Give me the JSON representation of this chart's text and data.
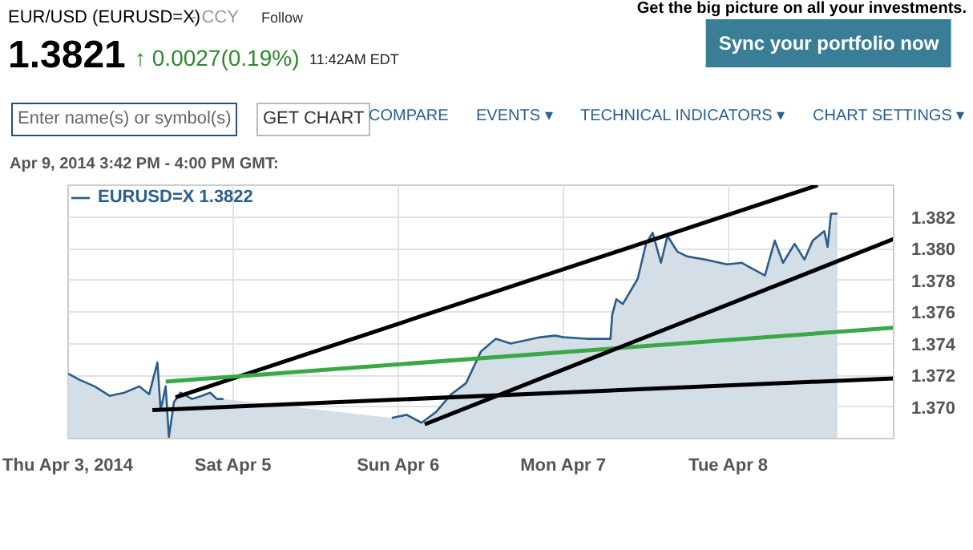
{
  "chart_data": {
    "type": "area",
    "title": "EUR/USD (EURUSD=X)",
    "annotations": [
      "- CCY",
      "Follow",
      "1.3821",
      "↑ 0.0027(0.19%)",
      "11:42AM EDT",
      "Get the big picture on all your investments.",
      "Sync your portfolio now",
      "Enter name(s) or symbol(s)",
      "GET CHART",
      "COMPARE",
      "EVENTS ▾",
      "TECHNICAL INDICATORS ▾",
      "CHART SETTINGS ▾",
      "Apr 9, 2014 3:42 PM - 4:00 PM GMT:"
    ],
    "xlim": [
      "2014-04-03T23:59",
      "2014-04-09"
    ],
    "ylim": [
      1.368,
      1.384
    ],
    "xticks": [
      {
        "value": "2014-04-03T23:59",
        "label": "Thu Apr 3, 2014"
      },
      {
        "value": "2014-04-05",
        "label": "Sat Apr 5"
      },
      {
        "value": "2014-04-06",
        "label": "Sun Apr 6"
      },
      {
        "value": "2014-04-07",
        "label": "Mon Apr 7"
      },
      {
        "value": "2014-04-08",
        "label": "Tue Apr 8"
      }
    ],
    "yticks": [
      {
        "value": 1.37,
        "label": "1.370"
      },
      {
        "value": 1.372,
        "label": "1.372"
      },
      {
        "value": 1.374,
        "label": "1.374"
      },
      {
        "value": 1.376,
        "label": "1.376"
      },
      {
        "value": 1.378,
        "label": "1.378"
      },
      {
        "value": 1.38,
        "label": "1.380"
      },
      {
        "value": 1.382,
        "label": "1.382"
      }
    ],
    "grid": true,
    "legend": "top left",
    "series": [
      {
        "name": "EURUSD=X 1.3822",
        "color": "#2b5c8a",
        "x": [
          "2014-04-04T00:00",
          "2014-04-04T01:41",
          "2014-04-04T03:50",
          "2014-04-04T06:00",
          "2014-04-04T08:10",
          "2014-04-04T10:19",
          "2014-04-04T11:46",
          "2014-04-04T12:58",
          "2014-04-04T13:26",
          "2014-04-04T14:10",
          "2014-04-04T14:38",
          "2014-04-04T15:22",
          "2014-04-04T16:19",
          "2014-04-04T18:00",
          "2014-04-04T19:26",
          "2014-04-04T20:38",
          "2014-04-04T21:36",
          "2014-04-04T22:34",
          "2014-04-05T12:00",
          "2014-04-05T23:02",
          "2014-04-06T01:12",
          "2014-04-06T03:22",
          "2014-04-06T05:31",
          "2014-04-06T07:41",
          "2014-04-06T09:50",
          "2014-04-06T12:00",
          "2014-04-06T14:10",
          "2014-04-06T16:19",
          "2014-04-06T18:29",
          "2014-04-06T20:38",
          "2014-04-06T22:48",
          "2014-04-07T00:00",
          "2014-04-07T03:22",
          "2014-04-07T06:50",
          "2014-04-07T07:05",
          "2014-04-07T07:41",
          "2014-04-07T08:38",
          "2014-04-07T10:48",
          "2014-04-07T12:00",
          "2014-04-07T12:58",
          "2014-04-07T14:10",
          "2014-04-07T15:07",
          "2014-04-07T16:34",
          "2014-04-07T18:00",
          "2014-04-07T20:38",
          "2014-04-07T23:46",
          "2014-04-08T01:55",
          "2014-04-08T05:17",
          "2014-04-08T06:43",
          "2014-04-08T07:55",
          "2014-04-08T09:36",
          "2014-04-08T11:02",
          "2014-04-08T12:14",
          "2014-04-08T13:55",
          "2014-04-08T14:24",
          "2014-04-08T14:53",
          "2014-04-08T15:50"
        ],
        "values": [
          1.3721,
          1.3717,
          1.3713,
          1.3707,
          1.3709,
          1.3713,
          1.3708,
          1.3728,
          1.3698,
          1.3713,
          1.3681,
          1.3703,
          1.3709,
          1.3705,
          1.3707,
          1.3709,
          1.3705,
          1.3705,
          null,
          1.3693,
          1.3695,
          1.369,
          1.3697,
          1.3708,
          1.3715,
          1.3735,
          1.3743,
          1.374,
          1.3742,
          1.3744,
          1.3745,
          1.3744,
          1.3743,
          1.3743,
          1.3758,
          1.3768,
          1.3765,
          1.3781,
          1.3803,
          1.381,
          1.3791,
          1.3808,
          1.3798,
          1.3795,
          1.3793,
          1.379,
          1.3791,
          1.3783,
          1.3805,
          1.3791,
          1.3803,
          1.3793,
          1.3805,
          1.3811,
          1.3801,
          1.3822,
          1.3822
        ]
      },
      {
        "type": "line",
        "color": "#000000",
        "x": [
          "2014-04-04T15:36",
          "2014-04-08T12:58"
        ],
        "values": [
          1.3706,
          1.384
        ]
      },
      {
        "type": "line",
        "color": "#3aa845",
        "x": [
          "2014-04-04T14:10",
          "2014-04-09T00:00"
        ],
        "values": [
          1.3716,
          1.375
        ]
      },
      {
        "type": "line",
        "color": "#000000",
        "x": [
          "2014-04-04T12:14",
          "2014-04-09T00:00"
        ],
        "values": [
          1.3698,
          1.3718
        ]
      },
      {
        "type": "line",
        "color": "#000000",
        "x": [
          "2014-04-06T03:50",
          "2014-04-09T00:00"
        ],
        "values": [
          1.3689,
          1.3806
        ]
      }
    ]
  }
}
